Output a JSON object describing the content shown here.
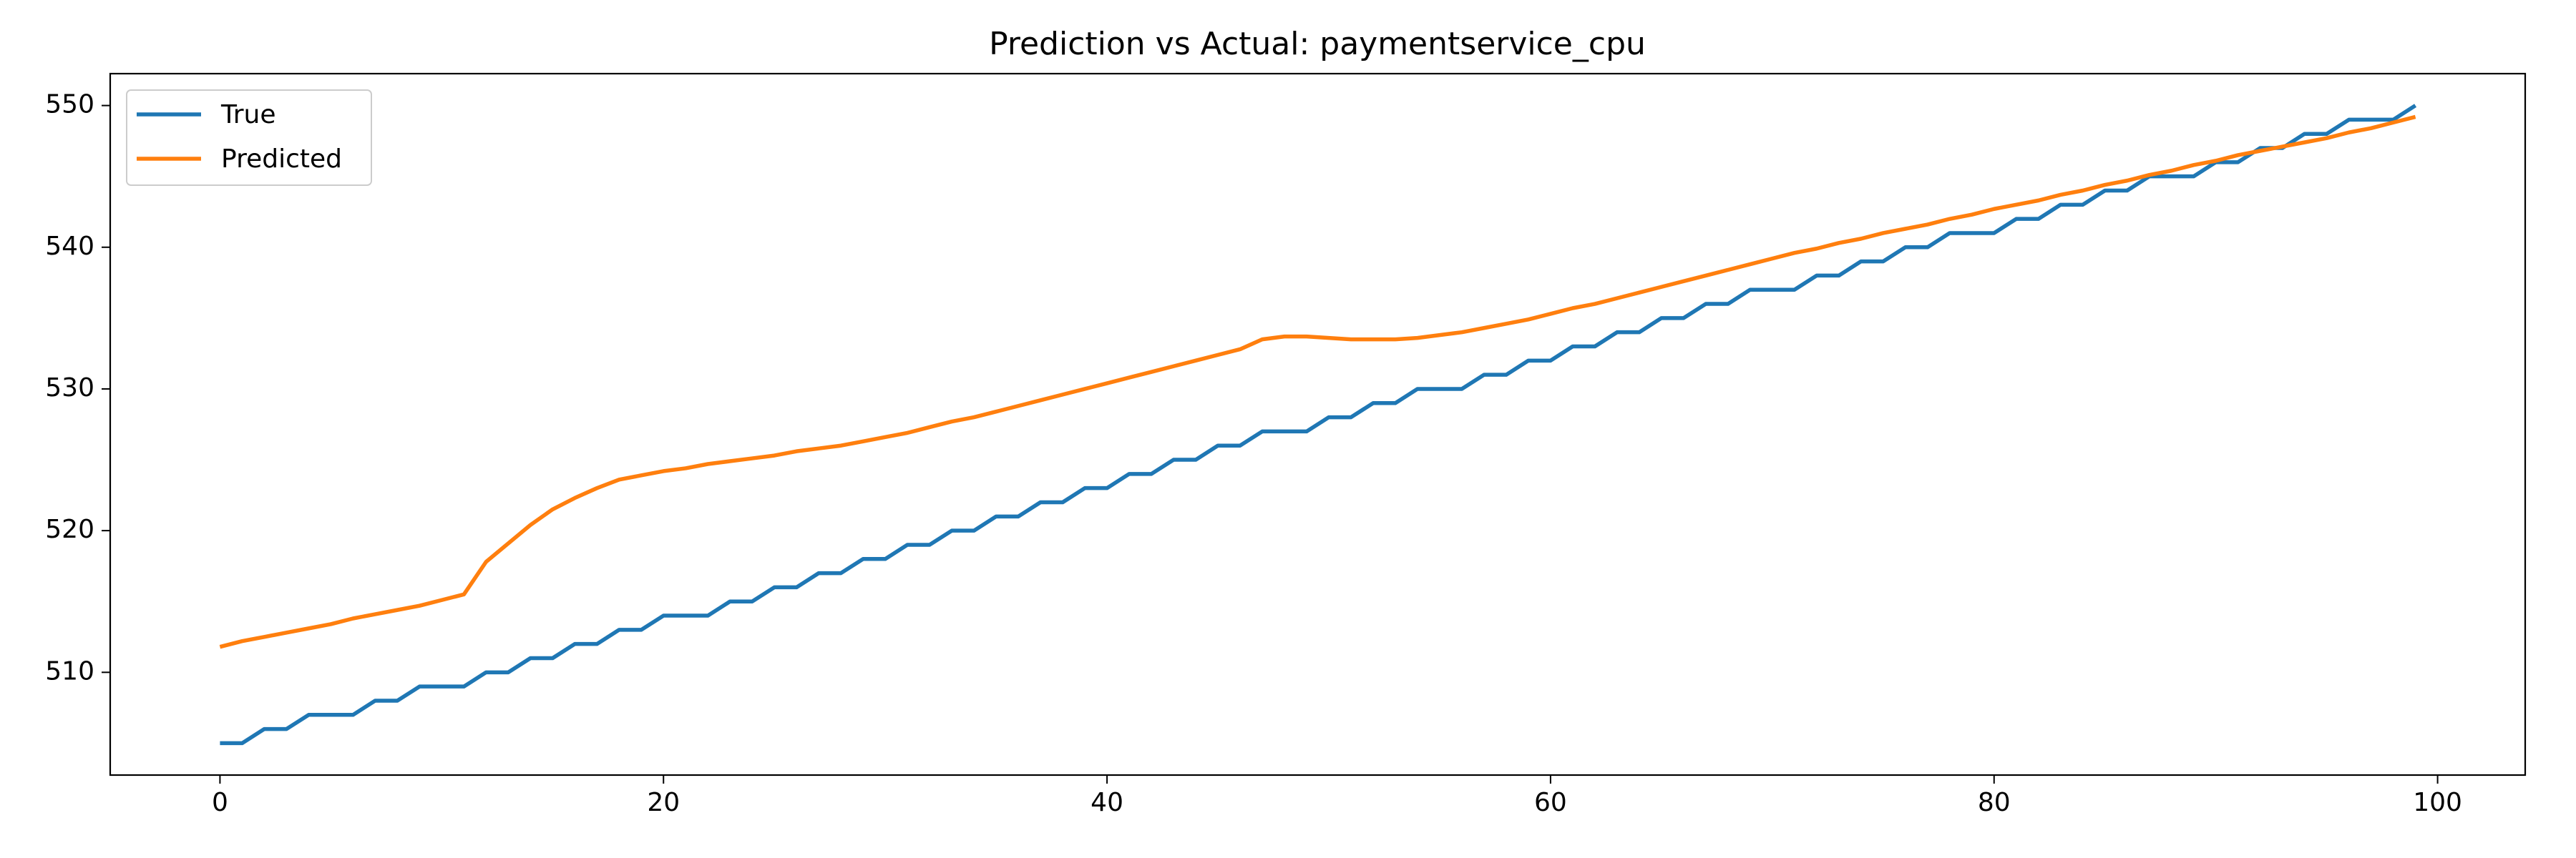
{
  "chart_data": {
    "type": "line",
    "title": "Prediction vs Actual: paymentservice_cpu",
    "x": [
      0,
      1,
      2,
      3,
      4,
      5,
      6,
      7,
      8,
      9,
      10,
      11,
      12,
      13,
      14,
      15,
      16,
      17,
      18,
      19,
      20,
      21,
      22,
      23,
      24,
      25,
      26,
      27,
      28,
      29,
      30,
      31,
      32,
      33,
      34,
      35,
      36,
      37,
      38,
      39,
      40,
      41,
      42,
      43,
      44,
      45,
      46,
      47,
      48,
      49,
      50,
      51,
      52,
      53,
      54,
      55,
      56,
      57,
      58,
      59,
      60,
      61,
      62,
      63,
      64,
      65,
      66,
      67,
      68,
      69,
      70,
      71,
      72,
      73,
      74,
      75,
      76,
      77,
      78,
      79,
      80,
      81,
      82,
      83,
      84,
      85,
      86,
      87,
      88,
      89,
      90,
      91,
      92,
      93,
      94,
      95,
      96,
      97,
      98,
      99
    ],
    "series": [
      {
        "name": "True",
        "color": "#1f77b4",
        "values": [
          505,
          505,
          506,
          506,
          507,
          507,
          507,
          508,
          508,
          509,
          509,
          509,
          510,
          510,
          511,
          511,
          512,
          512,
          513,
          513,
          514,
          514,
          514,
          515,
          515,
          516,
          516,
          517,
          517,
          518,
          518,
          519,
          519,
          520,
          520,
          521,
          521,
          522,
          522,
          523,
          523,
          524,
          524,
          525,
          525,
          526,
          526,
          527,
          527,
          527,
          528,
          528,
          529,
          529,
          530,
          530,
          530,
          531,
          531,
          532,
          532,
          533,
          533,
          534,
          534,
          535,
          535,
          536,
          536,
          537,
          537,
          537,
          538,
          538,
          539,
          539,
          540,
          540,
          541,
          541,
          541,
          542,
          542,
          543,
          543,
          544,
          544,
          545,
          545,
          545,
          546,
          546,
          547,
          547,
          548,
          548,
          549,
          549,
          549,
          550
        ]
      },
      {
        "name": "Predicted",
        "color": "#ff7f0e",
        "values": [
          511.8,
          512.2,
          512.5,
          512.8,
          513.1,
          513.4,
          513.8,
          514.1,
          514.4,
          514.7,
          515.1,
          515.5,
          517.8,
          519.1,
          520.4,
          521.5,
          522.3,
          523.0,
          523.6,
          523.9,
          524.2,
          524.4,
          524.7,
          524.9,
          525.1,
          525.3,
          525.6,
          525.8,
          526.0,
          526.3,
          526.6,
          526.9,
          527.3,
          527.7,
          528.0,
          528.4,
          528.8,
          529.2,
          529.6,
          530.0,
          530.4,
          530.8,
          531.2,
          531.6,
          532.0,
          532.4,
          532.8,
          533.5,
          533.7,
          533.7,
          533.6,
          533.5,
          533.5,
          533.5,
          533.6,
          533.8,
          534.0,
          534.3,
          534.6,
          534.9,
          535.3,
          535.7,
          536.0,
          536.4,
          536.8,
          537.2,
          537.6,
          538.0,
          538.4,
          538.8,
          539.2,
          539.6,
          539.9,
          540.3,
          540.6,
          541.0,
          541.3,
          541.6,
          542.0,
          542.3,
          542.7,
          543.0,
          543.3,
          543.7,
          544.0,
          544.4,
          544.7,
          545.1,
          545.4,
          545.8,
          546.1,
          546.5,
          546.8,
          547.1,
          547.4,
          547.7,
          548.1,
          548.4,
          548.8,
          549.2
        ]
      }
    ],
    "xlim": [
      -4.95,
      103.95
    ],
    "ylim": [
      502.75,
      552.25
    ],
    "xticks": [
      0,
      20,
      40,
      60,
      80,
      100
    ],
    "yticks": [
      510,
      520,
      530,
      540,
      550
    ],
    "grid": false,
    "legend": "upper left"
  }
}
